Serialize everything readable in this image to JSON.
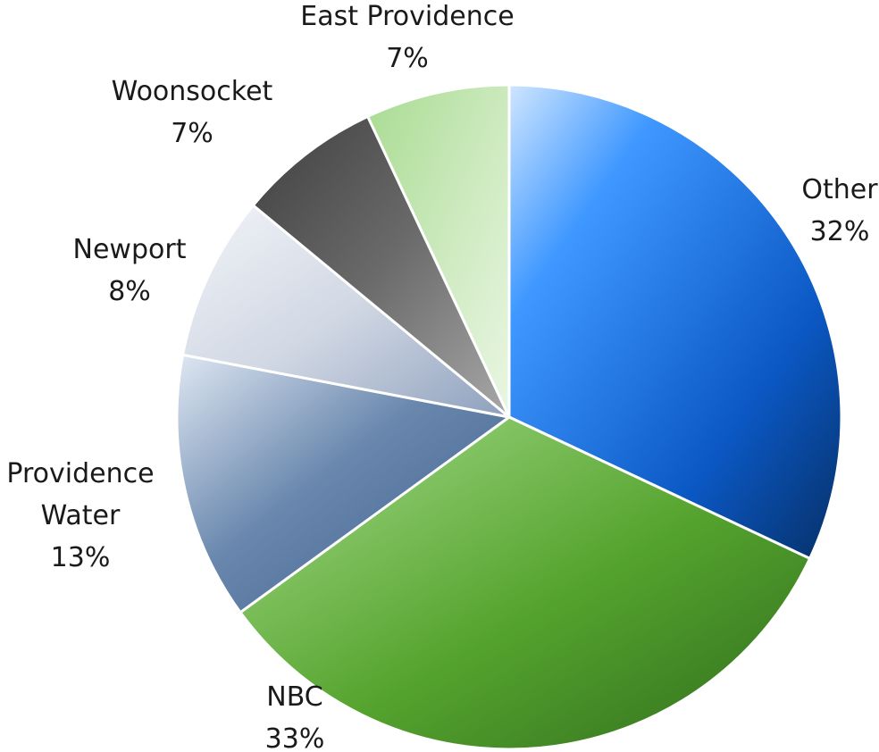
{
  "chart_data": {
    "type": "pie",
    "slices": [
      {
        "label": "Other",
        "value": 32,
        "value_label": "32%",
        "color": "#1565c0"
      },
      {
        "label": "NBC",
        "value": 33,
        "value_label": "33%",
        "color": "#5aa832"
      },
      {
        "label": "Providence Water",
        "value": 13,
        "value_label": "13%",
        "color": "#5d7ca3"
      },
      {
        "label": "Newport",
        "value": 8,
        "value_label": "8%",
        "color": "#b8c3d6"
      },
      {
        "label": "Woonsocket",
        "value": 7,
        "value_label": "7%",
        "color": "#6e6e6e"
      },
      {
        "label": "East Providence",
        "value": 7,
        "value_label": "7%",
        "color": "#b9e0a6"
      }
    ],
    "start": "12 o'clock",
    "direction": "clockwise",
    "legend": "none"
  }
}
